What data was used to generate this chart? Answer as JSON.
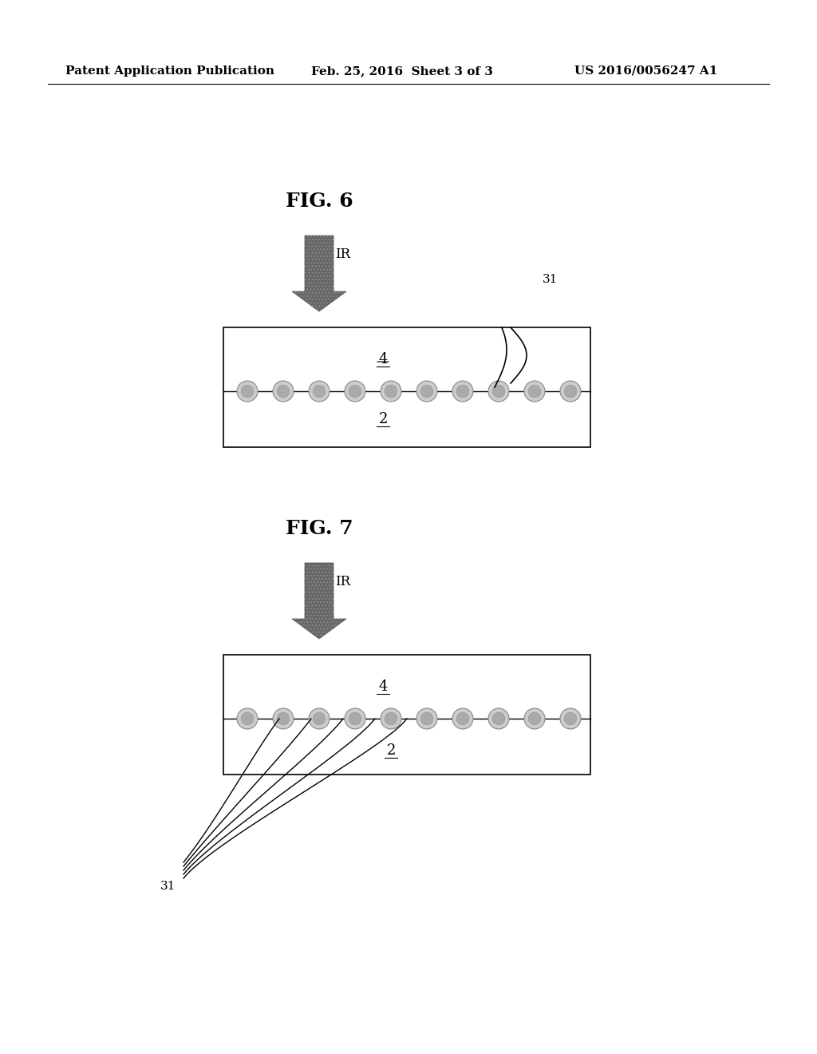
{
  "bg_color": "#ffffff",
  "text_color": "#000000",
  "header_left": "Patent Application Publication",
  "header_center": "Feb. 25, 2016  Sheet 3 of 3",
  "header_right": "US 2016/0056247 A1",
  "fig6_title": "FIG. 6",
  "fig7_title": "FIG. 7",
  "arrow_color": "#555555",
  "arrow_label": "IR",
  "box_color": "#000000",
  "dot_color": "#888888",
  "label_2": "2",
  "label_4": "4",
  "label_31": "31"
}
